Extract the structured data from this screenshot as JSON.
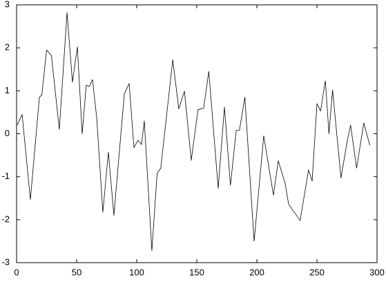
{
  "chart_data": {
    "type": "line",
    "x": [
      0.5,
      4.6,
      11.5,
      19,
      21,
      25,
      29,
      35.6,
      42,
      46.5,
      50.6,
      54.6,
      58,
      60.5,
      63.2,
      66.7,
      71.8,
      76.4,
      81,
      89.7,
      93.7,
      97.7,
      101,
      104,
      106.3,
      112.6,
      117,
      120,
      130,
      135,
      139.7,
      145.4,
      151,
      155.7,
      160,
      167.8,
      173,
      178,
      182.8,
      185.5,
      190,
      197.7,
      205.7,
      213.8,
      217.8,
      223.6,
      226.4,
      236,
      243,
      246,
      250,
      253,
      257,
      260,
      263,
      270,
      275,
      278,
      283,
      289,
      294
    ],
    "values": [
      0.2,
      0.45,
      -1.53,
      0.85,
      0.9,
      1.95,
      1.82,
      0.1,
      2.82,
      1.2,
      2.02,
      0.0,
      1.13,
      1.1,
      1.26,
      0.37,
      -1.83,
      -0.43,
      -1.9,
      0.93,
      1.17,
      -0.32,
      -0.15,
      -0.25,
      0.3,
      -2.72,
      -0.92,
      -0.8,
      1.72,
      0.58,
      0.99,
      -0.62,
      0.56,
      0.6,
      1.45,
      -1.27,
      0.62,
      -1.2,
      0.08,
      0.08,
      0.85,
      -2.5,
      -0.05,
      -1.43,
      -0.63,
      -1.16,
      -1.64,
      -2.02,
      -0.84,
      -1.1,
      0.7,
      0.53,
      1.23,
      0.0,
      1.02,
      -1.03,
      -0.2,
      0.2,
      -0.8,
      0.25,
      -0.27
    ],
    "color": "#000000",
    "xlim": [
      0,
      300
    ],
    "xticks": [
      0,
      50,
      100,
      150,
      200,
      250,
      300
    ],
    "ylim": [
      -3,
      3
    ],
    "yticks": [
      -3,
      -2,
      -1,
      0,
      1,
      2,
      3
    ]
  }
}
